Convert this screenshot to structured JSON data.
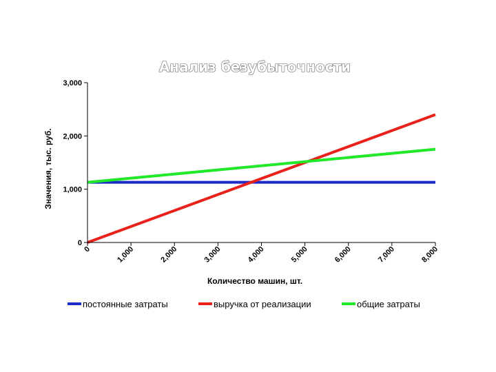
{
  "chart_data": {
    "type": "line",
    "title": "Анализ безубыточности",
    "xlabel": "Количество машин, шт.",
    "ylabel": "Значения, тыс. руб.",
    "x": [
      0,
      8000
    ],
    "xlim": [
      0,
      8000
    ],
    "ylim": [
      0,
      3000
    ],
    "x_ticks": [
      0,
      1000,
      2000,
      3000,
      4000,
      5000,
      6000,
      7000,
      8000
    ],
    "x_tick_labels": [
      "0",
      "1,000",
      "2,000",
      "3,000",
      "4,000",
      "5,000",
      "6,000",
      "7,000",
      "8,000"
    ],
    "y_ticks": [
      0,
      1000,
      2000,
      3000
    ],
    "y_tick_labels": [
      "0",
      "1,000",
      "2,000",
      "3,000"
    ],
    "grid": false,
    "legend_position": "bottom",
    "series": [
      {
        "name": "постоянные затраты",
        "color": "#1a2bc8",
        "values": [
          1130,
          1130
        ]
      },
      {
        "name": "выручка от реализации",
        "color": "#e8211a",
        "values": [
          0,
          2400
        ]
      },
      {
        "name": "общие затраты",
        "color": "#22e82a",
        "values": [
          1130,
          1750
        ]
      }
    ]
  }
}
